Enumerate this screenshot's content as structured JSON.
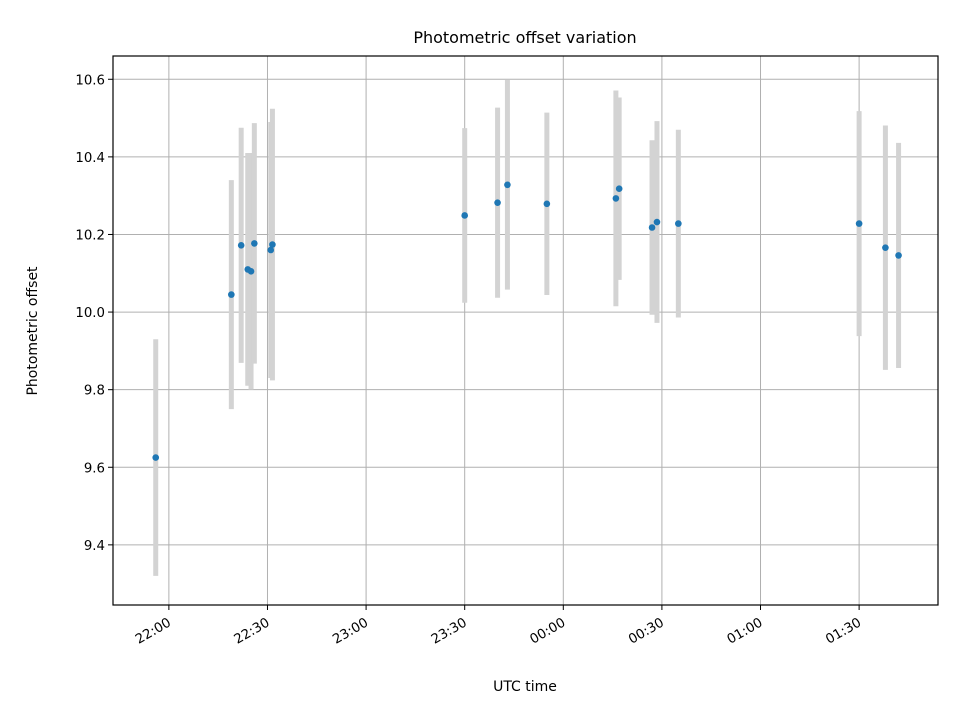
{
  "chart_data": {
    "type": "scatter",
    "title": "Photometric offset variation",
    "xlabel": "UTC time",
    "ylabel": "Photometric offset",
    "x_axis": {
      "kind": "datetime",
      "range": [
        "21:43",
        "01:54"
      ],
      "ticks": [
        "22:00",
        "22:30",
        "23:00",
        "23:30",
        "00:00",
        "00:30",
        "01:00",
        "01:30"
      ]
    },
    "y_axis": {
      "range": [
        9.245,
        10.66
      ],
      "ticks": [
        "9.4",
        "9.6",
        "9.8",
        "10.0",
        "10.2",
        "10.4",
        "10.6"
      ]
    },
    "grid": true,
    "marker_color": "#1f77b4",
    "errorbar_color": "#d3d3d3",
    "points": [
      {
        "time": "21:56",
        "y": 9.625,
        "err": 0.305
      },
      {
        "time": "22:19",
        "y": 10.045,
        "err": 0.295
      },
      {
        "time": "22:22",
        "y": 10.172,
        "err": 0.303
      },
      {
        "time": "22:24",
        "y": 10.11,
        "err": 0.3
      },
      {
        "time": "22:25",
        "y": 10.105,
        "err": 0.305
      },
      {
        "time": "22:26",
        "y": 10.177,
        "err": 0.31
      },
      {
        "time": "22:31",
        "y": 10.16,
        "err": 0.33
      },
      {
        "time": "22:31:30",
        "y": 10.174,
        "err": 0.35
      },
      {
        "time": "23:30",
        "y": 10.249,
        "err": 0.225
      },
      {
        "time": "23:40",
        "y": 10.282,
        "err": 0.245
      },
      {
        "time": "23:43",
        "y": 10.328,
        "err": 0.27
      },
      {
        "time": "23:55",
        "y": 10.279,
        "err": 0.235
      },
      {
        "time": "00:16",
        "y": 10.293,
        "err": 0.278
      },
      {
        "time": "00:17",
        "y": 10.318,
        "err": 0.235
      },
      {
        "time": "00:27",
        "y": 10.218,
        "err": 0.225
      },
      {
        "time": "00:28:30",
        "y": 10.232,
        "err": 0.26
      },
      {
        "time": "00:35",
        "y": 10.228,
        "err": 0.242
      },
      {
        "time": "01:30",
        "y": 10.228,
        "err": 0.29
      },
      {
        "time": "01:38",
        "y": 10.166,
        "err": 0.315
      },
      {
        "time": "01:42",
        "y": 10.146,
        "err": 0.29
      }
    ]
  }
}
